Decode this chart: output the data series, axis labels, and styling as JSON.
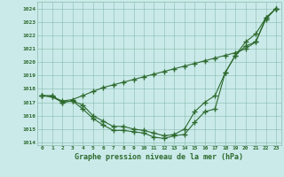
{
  "title": "Graphe pression niveau de la mer (hPa)",
  "background_color": "#caeaea",
  "line_color": "#2d6a2d",
  "xlim": [
    -0.5,
    23.5
  ],
  "ylim": [
    1013.8,
    1024.5
  ],
  "xticks": [
    0,
    1,
    2,
    3,
    4,
    5,
    6,
    7,
    8,
    9,
    10,
    11,
    12,
    13,
    14,
    15,
    16,
    17,
    18,
    19,
    20,
    21,
    22,
    23
  ],
  "yticks": [
    1014,
    1015,
    1016,
    1017,
    1018,
    1019,
    1020,
    1021,
    1022,
    1023,
    1024
  ],
  "series1": [
    1017.5,
    1017.5,
    1017.0,
    1017.1,
    1016.5,
    1015.8,
    1015.3,
    1014.9,
    1014.9,
    1014.8,
    1014.7,
    1014.4,
    1014.3,
    1014.5,
    1014.6,
    1015.5,
    1016.3,
    1016.5,
    1019.2,
    1020.5,
    1021.2,
    1021.5,
    1023.2,
    1024.0
  ],
  "series2": [
    1017.5,
    1017.4,
    1017.0,
    1017.1,
    1016.8,
    1016.0,
    1015.6,
    1015.2,
    1015.2,
    1015.0,
    1014.9,
    1014.7,
    1014.5,
    1014.6,
    1015.0,
    1016.3,
    1017.0,
    1017.5,
    1019.2,
    1020.5,
    1021.5,
    1022.1,
    1023.3,
    1024.0
  ],
  "series3": [
    1017.5,
    1017.4,
    1017.1,
    1017.2,
    1017.5,
    1017.8,
    1018.1,
    1018.3,
    1018.5,
    1018.7,
    1018.9,
    1019.1,
    1019.3,
    1019.5,
    1019.7,
    1019.9,
    1020.1,
    1020.3,
    1020.5,
    1020.7,
    1021.0,
    1021.5,
    1023.3,
    1024.0
  ]
}
